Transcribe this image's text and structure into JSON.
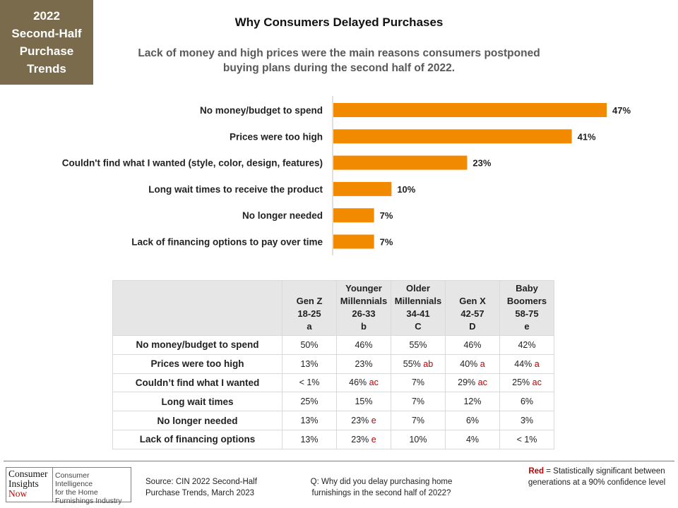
{
  "badge": {
    "lines": [
      "2022",
      "Second-Half",
      "Purchase",
      "Trends"
    ]
  },
  "title": "Why Consumers  Delayed Purchases",
  "subtitle_lines": [
    "Lack of money and high prices were the main reasons consumers postponed",
    "buying plans during the second half of 2022."
  ],
  "colors": {
    "bar": "#f28a00",
    "sig": "#c00000",
    "badge": "#7a6b4c"
  },
  "chart_data": {
    "type": "bar",
    "orientation": "horizontal",
    "categories": [
      "No money/budget to spend",
      "Prices were too high",
      "Couldn't find what I wanted (style, color, design, features)",
      "Long wait times to receive the product",
      "No longer needed",
      "Lack of financing options to pay over time"
    ],
    "values": [
      47,
      41,
      23,
      10,
      7,
      7
    ],
    "value_labels": [
      "47%",
      "41%",
      "23%",
      "10%",
      "7%",
      "7%"
    ],
    "xlim": [
      0,
      50
    ]
  },
  "table": {
    "headers": [
      [
        "Gen Z",
        "18-25",
        "a"
      ],
      [
        "Younger",
        "Millennials",
        "26-33",
        "b"
      ],
      [
        "Older",
        "Millennials",
        "34-41",
        "C"
      ],
      [
        "Gen X",
        "42-57",
        "D"
      ],
      [
        "Baby",
        "Boomers",
        "58-75",
        "e"
      ]
    ],
    "rows": [
      {
        "label": "No money/budget to spend",
        "cells": [
          [
            "50%",
            ""
          ],
          [
            "46%",
            ""
          ],
          [
            "55%",
            ""
          ],
          [
            "46%",
            ""
          ],
          [
            "42%",
            ""
          ]
        ]
      },
      {
        "label": "Prices were too high",
        "cells": [
          [
            "13%",
            ""
          ],
          [
            "23%",
            ""
          ],
          [
            "55%",
            "ab"
          ],
          [
            "40%",
            "a"
          ],
          [
            "44%",
            "a"
          ]
        ]
      },
      {
        "label": "Couldn’t find what I wanted",
        "cells": [
          [
            "< 1%",
            ""
          ],
          [
            "46%",
            "ac"
          ],
          [
            "7%",
            ""
          ],
          [
            "29%",
            "ac"
          ],
          [
            "25%",
            "ac"
          ]
        ]
      },
      {
        "label": "Long wait times",
        "cells": [
          [
            "25%",
            ""
          ],
          [
            "15%",
            ""
          ],
          [
            "7%",
            ""
          ],
          [
            "12%",
            ""
          ],
          [
            "6%",
            ""
          ]
        ]
      },
      {
        "label": "No longer needed",
        "cells": [
          [
            "13%",
            ""
          ],
          [
            "23%",
            "e"
          ],
          [
            "7%",
            ""
          ],
          [
            "6%",
            ""
          ],
          [
            "3%",
            ""
          ]
        ]
      },
      {
        "label": "Lack of financing options",
        "cells": [
          [
            "13%",
            ""
          ],
          [
            "23%",
            "e"
          ],
          [
            "10%",
            ""
          ],
          [
            "4%",
            ""
          ],
          [
            "< 1%",
            ""
          ]
        ]
      }
    ]
  },
  "footer": {
    "logo_left": [
      "Consumer",
      "Insights",
      "Now"
    ],
    "logo_right": [
      "Consumer Intelligence",
      "for the Home",
      "Furnishings Industry"
    ],
    "source": [
      "Source:  CIN 2022 Second-Half",
      "Purchase Trends, March 2023"
    ],
    "question": [
      "Q: Why did you delay purchasing home",
      "furnishings in the second half of 2022?"
    ],
    "note_red": "Red",
    "note_rest": " = Statistically significant between  generations at a 90% confidence level"
  }
}
